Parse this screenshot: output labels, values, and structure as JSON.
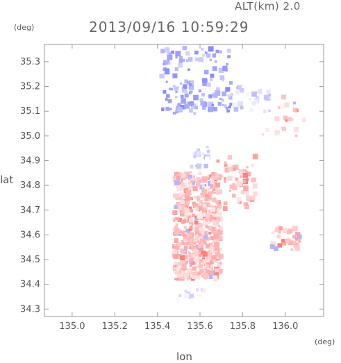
{
  "header": {
    "altitude_label": "ALT(km) 2.0",
    "timestamp": "2013/09/16 10:59:29"
  },
  "chart_data": {
    "type": "heatmap",
    "title": "2013/09/16 10:59:29",
    "subtitle": "ALT(km) 2.0",
    "xlabel": "lon",
    "ylabel": "lat",
    "x_unit": "(deg)",
    "y_unit": "(deg)",
    "xlim": [
      134.87,
      136.18
    ],
    "ylim": [
      34.27,
      35.37
    ],
    "grid": false,
    "x_ticks": [
      135.0,
      135.2,
      135.4,
      135.6,
      135.8,
      136.0
    ],
    "x_tick_labels": [
      "135.0",
      "135.2",
      "135.4",
      "135.6",
      "135.8",
      "136.0"
    ],
    "y_ticks": [
      34.3,
      34.4,
      34.5,
      34.6,
      34.7,
      34.8,
      34.9,
      35.0,
      35.1,
      35.2,
      35.3
    ],
    "y_tick_labels": [
      "34.3",
      "34.4",
      "34.5",
      "34.6",
      "34.7",
      "34.8",
      "34.9",
      "35.0",
      "35.1",
      "35.2",
      "35.3"
    ],
    "colors": {
      "positive": "#f07070",
      "negative": "#7070e8",
      "frame": "#999999"
    },
    "regions": [
      {
        "name": "north-blue-cluster",
        "value": -0.55,
        "lon": [
          135.42,
          135.75
        ],
        "lat": [
          35.09,
          35.36
        ],
        "count": 140
      },
      {
        "name": "north-east-light-blue",
        "value": -0.25,
        "lon": [
          135.74,
          135.93
        ],
        "lat": [
          35.1,
          35.2
        ],
        "count": 30
      },
      {
        "name": "east-scattered",
        "value": 0.2,
        "lon": [
          135.88,
          136.1
        ],
        "lat": [
          35.0,
          35.16
        ],
        "count": 30
      },
      {
        "name": "mid-light-blue",
        "value": -0.2,
        "lon": [
          135.55,
          135.64
        ],
        "lat": [
          34.87,
          34.96
        ],
        "count": 25
      },
      {
        "name": "main-pink-body",
        "value": 0.4,
        "lon": [
          135.48,
          135.7
        ],
        "lat": [
          34.42,
          34.85
        ],
        "count": 520
      },
      {
        "name": "right-arm",
        "value": 0.4,
        "lon": [
          135.68,
          135.86
        ],
        "lat": [
          34.7,
          34.92
        ],
        "count": 60
      },
      {
        "name": "east-pink-patch",
        "value": 0.45,
        "lon": [
          135.93,
          136.07
        ],
        "lat": [
          34.54,
          34.63
        ],
        "count": 35
      },
      {
        "name": "south-faint-tail",
        "value": -0.1,
        "lon": [
          135.48,
          135.62
        ],
        "lat": [
          34.33,
          34.38
        ],
        "count": 15
      }
    ]
  }
}
